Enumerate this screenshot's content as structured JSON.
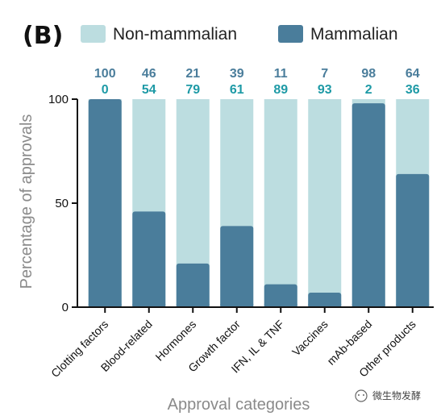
{
  "panel_label": "(B)",
  "watermark": "微生物发酵",
  "colors": {
    "mammalian": "#4a7d9b",
    "non_mammalian": "#bcdde0",
    "top_numbers_mammalian": "#4a7d9b",
    "top_numbers_non_mammalian": "#1e9aa6",
    "axis": "#111111",
    "axis_title": "#8a8a8a"
  },
  "chart_data": {
    "type": "bar",
    "stacked": true,
    "title": "",
    "xlabel": "Approval categories",
    "ylabel": "Percentage of approvals",
    "ylim": [
      0,
      100
    ],
    "yticks": [
      0,
      50,
      100
    ],
    "legend_position": "top",
    "categories": [
      "Clotting factors",
      "Blood-related",
      "Hormones",
      "Growth factor",
      "IFN, IL & TNF",
      "Vaccines",
      "mAb-based",
      "Other products"
    ],
    "series": [
      {
        "name": "Mammalian",
        "values": [
          100,
          46,
          21,
          39,
          11,
          7,
          98,
          64
        ]
      },
      {
        "name": "Non-mammalian",
        "values": [
          0,
          54,
          79,
          61,
          89,
          93,
          2,
          36
        ]
      }
    ],
    "legend": [
      {
        "name": "Non-mammalian",
        "color": "#bcdde0"
      },
      {
        "name": "Mammalian",
        "color": "#4a7d9b"
      }
    ],
    "top_labels": {
      "row1": [
        "100",
        "46",
        "21",
        "39",
        "11",
        "7",
        "98",
        "64"
      ],
      "row2": [
        "0",
        "54",
        "79",
        "61",
        "89",
        "93",
        "2",
        "36"
      ]
    }
  }
}
